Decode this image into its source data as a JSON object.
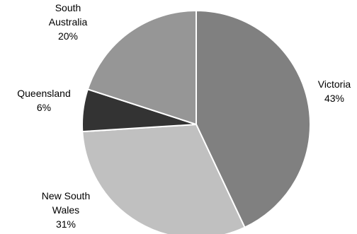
{
  "chart_data": {
    "type": "pie",
    "title": "",
    "slices": [
      {
        "name": "Victoria",
        "label_lines": [
          "Victoria",
          "43%"
        ],
        "value": 43,
        "color": "#808080"
      },
      {
        "name": "New South Wales",
        "label_lines": [
          "New South",
          "Wales",
          "31%"
        ],
        "value": 31,
        "color": "#c0c0c0"
      },
      {
        "name": "Queensland",
        "label_lines": [
          "Queensland",
          "6%"
        ],
        "value": 6,
        "color": "#333333"
      },
      {
        "name": "South Australia",
        "label_lines": [
          "South",
          "Australia",
          "20%"
        ],
        "value": 20,
        "color": "#969696"
      }
    ],
    "legend": "none",
    "start_angle": "12 o'clock",
    "direction": "clockwise"
  }
}
